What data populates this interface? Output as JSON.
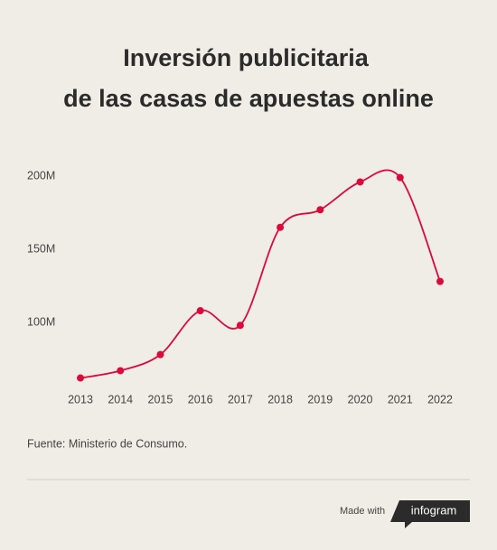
{
  "chart_data": {
    "type": "line",
    "title": [
      "Inversión publicitaria",
      "de las casas de apuestas online"
    ],
    "categories": [
      "2013",
      "2014",
      "2015",
      "2016",
      "2017",
      "2018",
      "2019",
      "2020",
      "2021",
      "2022"
    ],
    "values": [
      62,
      67,
      78,
      108,
      98,
      165,
      177,
      196,
      199,
      128
    ],
    "color": "#dc0a3c",
    "ylim": [
      55,
      210
    ],
    "yticks": [
      {
        "value": 100,
        "label": "100M"
      },
      {
        "value": 150,
        "label": "150M"
      },
      {
        "value": 200,
        "label": "200M"
      }
    ],
    "grid": false,
    "source": "Fuente: Ministerio de Consumo."
  },
  "footer": {
    "made_with": "Made with",
    "brand": "infogram"
  }
}
